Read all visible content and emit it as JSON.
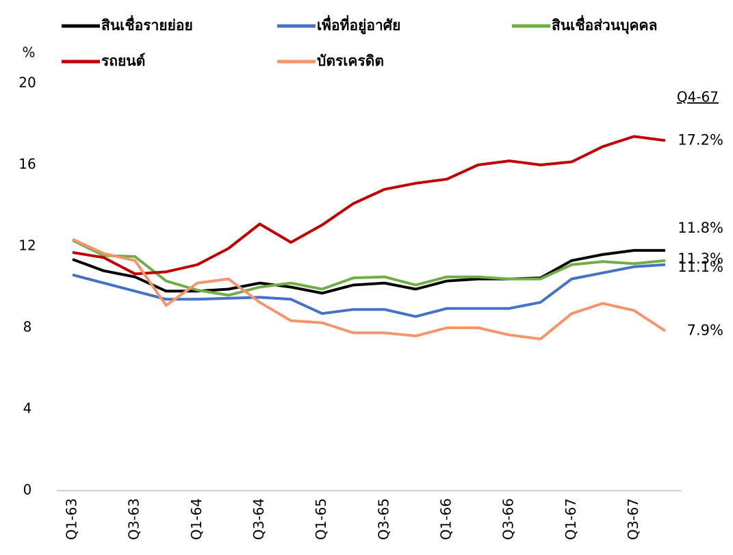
{
  "chart_data": {
    "type": "line",
    "y_label": "%",
    "annotation": "Q4-67",
    "categories": [
      "Q1-63",
      null,
      "Q3-63",
      null,
      "Q1-64",
      null,
      "Q3-64",
      null,
      "Q1-65",
      null,
      "Q3-65",
      null,
      "Q1-66",
      null,
      "Q3-66",
      null,
      "Q1-67",
      null,
      "Q3-67",
      null
    ],
    "ylim": [
      0,
      20
    ],
    "yticks": [
      0,
      4,
      8,
      12,
      16,
      20
    ],
    "grid": false,
    "series": [
      {
        "name": "สินเชื่อรายย่อย",
        "color": "#000000",
        "values": [
          11.36,
          10.8,
          10.5,
          9.8,
          9.8,
          9.9,
          10.2,
          10.0,
          9.7,
          10.1,
          10.2,
          9.9,
          10.3,
          10.4,
          10.4,
          10.45,
          11.3,
          11.6,
          11.8,
          11.8
        ],
        "value_labels": [
          null,
          null,
          null,
          null,
          null,
          null,
          null,
          null,
          null,
          null,
          null,
          null,
          null,
          null,
          null,
          null,
          null,
          null,
          null,
          "11.8%"
        ]
      },
      {
        "name": "เพื่อที่อยู่อาศัย",
        "color": "#4472c4",
        "values": [
          10.6,
          10.2,
          9.8,
          9.4,
          9.4,
          9.45,
          9.5,
          9.4,
          8.7,
          8.9,
          8.9,
          8.55,
          8.95,
          8.95,
          8.95,
          9.25,
          10.4,
          10.7,
          11.0,
          11.1
        ],
        "value_labels": [
          null,
          null,
          null,
          null,
          null,
          null,
          null,
          null,
          null,
          null,
          null,
          null,
          null,
          null,
          null,
          null,
          null,
          null,
          null,
          "11.1%"
        ]
      },
      {
        "name": "สินเชื่อส่วนบุคคล",
        "color": "#70ad47",
        "values": [
          12.3,
          11.55,
          11.5,
          10.3,
          9.85,
          9.6,
          10.0,
          10.2,
          9.9,
          10.45,
          10.5,
          10.1,
          10.5,
          10.5,
          10.4,
          10.4,
          11.1,
          11.25,
          11.15,
          11.3
        ],
        "value_labels": [
          null,
          null,
          null,
          null,
          null,
          null,
          null,
          null,
          null,
          null,
          null,
          null,
          null,
          null,
          null,
          null,
          null,
          null,
          null,
          "11.3%"
        ]
      },
      {
        "name": "รถยนต์",
        "color": "#c00000",
        "values": [
          11.7,
          11.45,
          10.65,
          10.75,
          11.1,
          11.9,
          13.1,
          12.2,
          13.05,
          14.1,
          14.8,
          15.1,
          15.3,
          16.0,
          16.2,
          16.0,
          16.15,
          16.9,
          17.4,
          17.2
        ],
        "value_labels": [
          null,
          null,
          null,
          null,
          null,
          null,
          null,
          null,
          null,
          null,
          null,
          null,
          null,
          null,
          null,
          null,
          null,
          null,
          null,
          "17.2%"
        ]
      },
      {
        "name": "บัตรเครดิต",
        "color": "#f4956b",
        "values": [
          12.35,
          11.65,
          11.3,
          9.1,
          10.2,
          10.4,
          9.25,
          8.35,
          8.25,
          7.75,
          7.75,
          7.6,
          8.0,
          8.0,
          7.65,
          7.45,
          8.7,
          9.2,
          8.85,
          7.85
        ],
        "value_labels": [
          null,
          null,
          null,
          null,
          null,
          null,
          null,
          null,
          null,
          null,
          null,
          null,
          null,
          null,
          null,
          null,
          null,
          null,
          null,
          "7.9%"
        ]
      }
    ]
  }
}
